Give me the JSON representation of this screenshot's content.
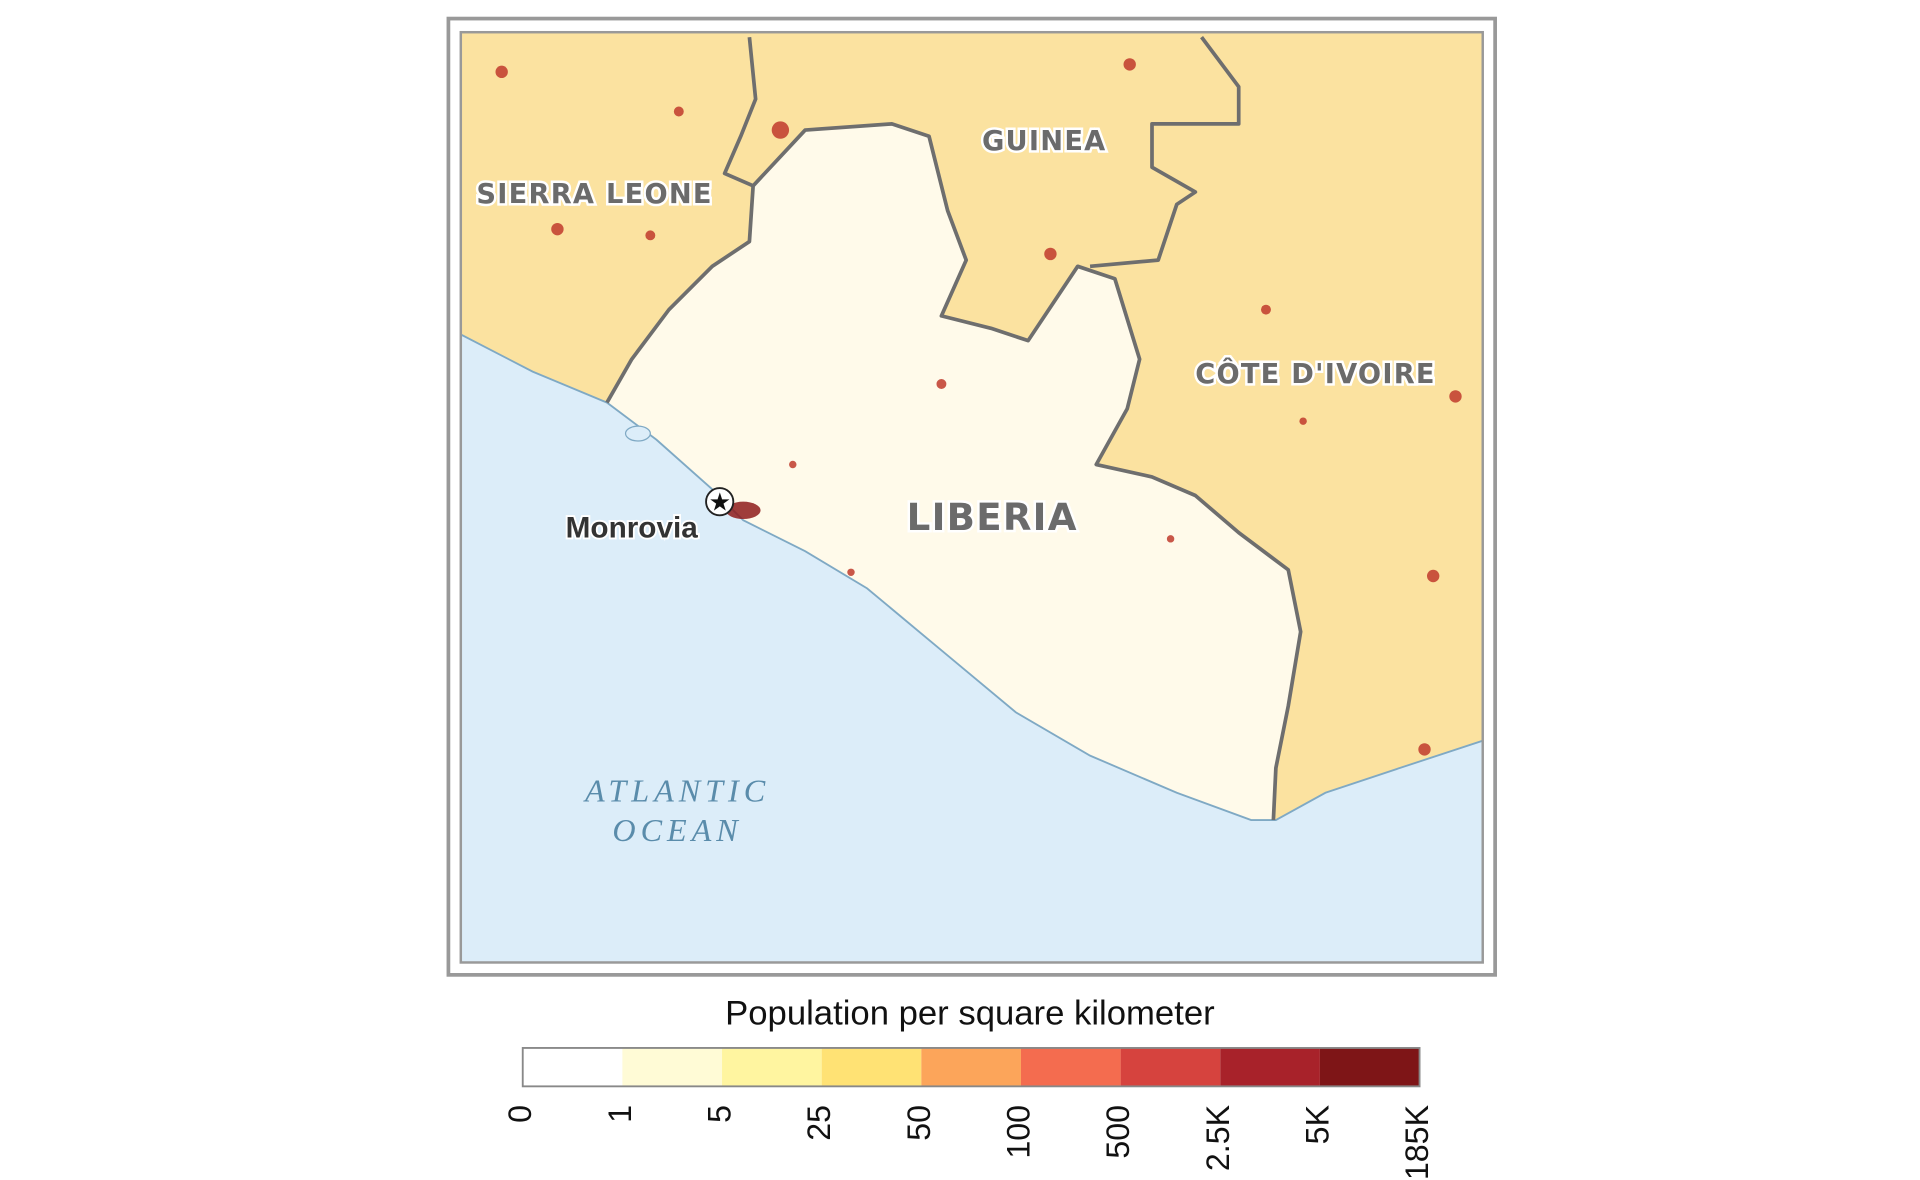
{
  "map": {
    "labels": {
      "sierra_leone": "SIERRA LEONE",
      "guinea": "GUINEA",
      "cote_divoire": "CÔTE D'IVOIRE",
      "liberia": "LIBERIA",
      "capital": "Monrovia",
      "ocean_line1": "ATLANTIC",
      "ocean_line2": "OCEAN"
    },
    "legend": {
      "title": "Population per square kilometer",
      "breaks": [
        "0",
        "1",
        "5",
        "25",
        "50",
        "100",
        "500",
        "2.5K",
        "5K",
        "185K"
      ],
      "colors": [
        "#ffffff",
        "#fffbd6",
        "#fff5a0",
        "#ffe274",
        "#fca55a",
        "#f46c4f",
        "#d6433e",
        "#a8222a",
        "#7e1517"
      ]
    }
  }
}
